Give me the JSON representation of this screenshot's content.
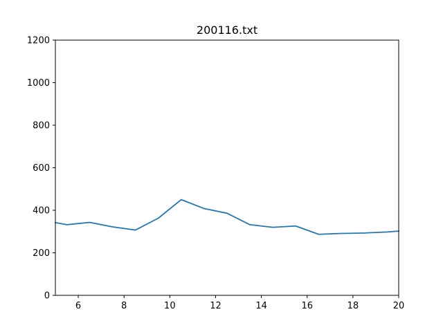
{
  "chart_data": {
    "type": "line",
    "title": "200116.txt",
    "xlabel": "",
    "ylabel": "",
    "xlim": [
      5,
      20
    ],
    "ylim": [
      0,
      1200
    ],
    "xticks": [
      6,
      8,
      10,
      12,
      14,
      16,
      18,
      20
    ],
    "yticks": [
      0,
      200,
      400,
      600,
      800,
      1000,
      1200
    ],
    "grid": false,
    "series": [
      {
        "color": "#1f77b4",
        "x": [
          5.0,
          5.5,
          6.5,
          7.5,
          8.5,
          9.5,
          10.5,
          11.5,
          12.5,
          13.5,
          14.5,
          15.5,
          16.5,
          17.5,
          18.5,
          19.5,
          20.0
        ],
        "y": [
          342,
          332,
          343,
          322,
          307,
          363,
          450,
          408,
          386,
          332,
          320,
          326,
          287,
          291,
          293,
          298,
          302
        ]
      }
    ]
  }
}
